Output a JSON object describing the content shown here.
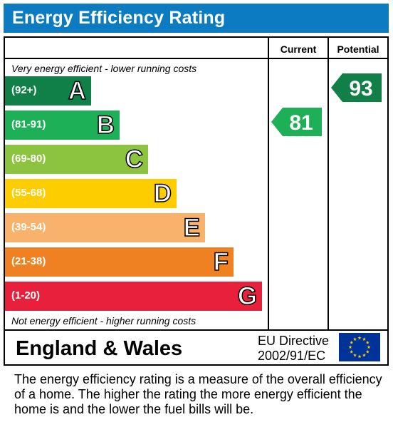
{
  "title": "Energy Efficiency Rating",
  "columns": {
    "current": "Current",
    "potential": "Potential"
  },
  "top_caption": "Very energy efficient - lower running costs",
  "bottom_caption": "Not energy efficient - higher running costs",
  "colors": {
    "title_bg": "#0c7bc2",
    "A": "#108048",
    "B": "#1db056",
    "C": "#8cc43f",
    "D": "#fecd00",
    "E": "#f8b26b",
    "F": "#f08122",
    "G": "#e8203b"
  },
  "chart_data": {
    "type": "bar",
    "categories": [
      "A",
      "B",
      "C",
      "D",
      "E",
      "F",
      "G"
    ],
    "ranges": [
      "(92+)",
      "(81-91)",
      "(69-80)",
      "(55-68)",
      "(39-54)",
      "(21-38)",
      "(1-20)"
    ],
    "current": {
      "value": 81,
      "band": "B",
      "label": "81"
    },
    "potential": {
      "value": 93,
      "band": "A",
      "label": "93"
    }
  },
  "footer": {
    "region": "England & Wales",
    "directive_line1": "EU Directive",
    "directive_line2": "2002/91/EC",
    "flag_icon": "eu-flag-icon"
  },
  "description": "The energy efficiency rating is a measure of the overall efficiency of a home.  The higher the rating the more energy efficient the home is and the lower the fuel bills will be."
}
